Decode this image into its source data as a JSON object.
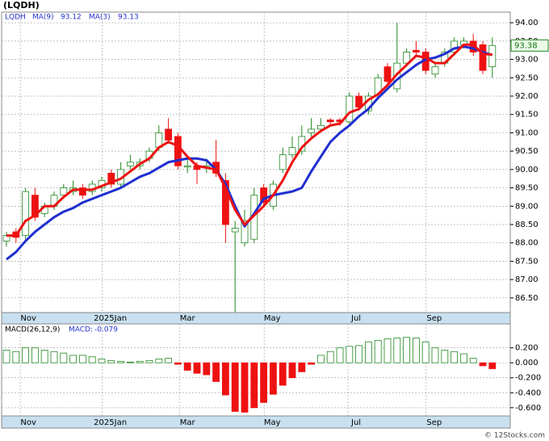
{
  "header": {
    "title": "(LQDH)",
    "footer": "© 12Stocks.com"
  },
  "chart_data": [
    {
      "type": "candlestick",
      "symbol": "LQDH",
      "open": [
        88.05,
        88.3,
        88.2,
        89.3,
        88.8,
        89.0,
        89.3,
        89.4,
        89.5,
        89.4,
        89.5,
        89.9,
        89.6,
        90.1,
        90.1,
        90.3,
        90.6,
        91.1,
        90.9,
        90.1,
        90.1,
        90.05,
        90.2,
        89.7,
        88.3,
        88.0,
        88.1,
        89.5,
        89.0,
        90.0,
        90.4,
        90.5,
        91.0,
        91.1,
        91.35,
        91.35,
        91.3,
        92.0,
        91.6,
        92.0,
        92.8,
        92.2,
        92.9,
        93.25,
        93.2,
        92.6,
        92.9,
        93.2,
        93.4,
        93.5,
        93.4,
        92.8
      ],
      "high": [
        88.3,
        88.4,
        89.5,
        89.5,
        89.1,
        89.4,
        89.6,
        89.7,
        89.6,
        89.7,
        89.8,
        90.0,
        90.2,
        90.4,
        90.3,
        90.6,
        91.2,
        91.4,
        91.0,
        90.3,
        90.2,
        90.3,
        90.8,
        89.9,
        88.6,
        88.9,
        89.5,
        89.6,
        89.7,
        90.6,
        90.9,
        91.2,
        91.4,
        91.4,
        91.4,
        91.4,
        92.1,
        92.1,
        92.1,
        92.6,
        92.9,
        94.0,
        93.3,
        93.5,
        93.3,
        92.9,
        93.3,
        93.6,
        93.6,
        93.7,
        93.5,
        93.6
      ],
      "low": [
        87.9,
        88.0,
        88.1,
        88.6,
        88.7,
        88.9,
        89.2,
        89.3,
        89.2,
        89.3,
        89.4,
        89.5,
        89.5,
        90.0,
        90.0,
        90.2,
        90.5,
        90.7,
        90.0,
        89.9,
        89.6,
        89.9,
        89.8,
        88.0,
        86.1,
        87.9,
        88.0,
        89.0,
        88.9,
        89.9,
        90.3,
        90.4,
        90.9,
        91.0,
        91.2,
        91.2,
        91.2,
        91.6,
        91.5,
        91.9,
        92.3,
        92.1,
        92.8,
        93.1,
        92.6,
        92.5,
        92.8,
        93.1,
        93.3,
        93.1,
        92.6,
        92.5
      ],
      "close": [
        88.2,
        88.15,
        89.4,
        88.7,
        89.0,
        89.3,
        89.5,
        89.5,
        89.3,
        89.6,
        89.7,
        89.6,
        90.0,
        90.2,
        90.2,
        90.5,
        91.0,
        90.8,
        90.1,
        90.1,
        90.0,
        90.1,
        89.9,
        88.5,
        88.4,
        88.6,
        89.3,
        89.1,
        89.6,
        90.4,
        90.6,
        90.9,
        91.1,
        91.2,
        91.3,
        91.3,
        92.0,
        91.7,
        92.0,
        92.5,
        92.4,
        92.9,
        93.2,
        93.2,
        92.7,
        92.8,
        93.2,
        93.5,
        93.5,
        93.2,
        92.7,
        93.38
      ],
      "up_color": "#228822",
      "down_color": "#ee1111",
      "series": [
        {
          "name": "MA(9)",
          "color": "#1f2fd0",
          "values": [
            87.55,
            87.75,
            88.05,
            88.3,
            88.5,
            88.7,
            88.85,
            88.95,
            89.1,
            89.2,
            89.3,
            89.4,
            89.5,
            89.65,
            89.8,
            89.9,
            90.05,
            90.2,
            90.25,
            90.3,
            90.3,
            90.25,
            90.0,
            89.6,
            89.0,
            88.45,
            88.8,
            89.2,
            89.3,
            89.35,
            89.4,
            89.5,
            89.95,
            90.35,
            90.75,
            91.0,
            91.2,
            91.45,
            91.65,
            91.95,
            92.2,
            92.45,
            92.65,
            92.85,
            93.0,
            93.05,
            93.15,
            93.3,
            93.35,
            93.3,
            93.2,
            93.12
          ]
        },
        {
          "name": "MA(3)",
          "color": "#ee1111",
          "values": [
            88.2,
            88.2,
            88.6,
            88.75,
            89.0,
            89.0,
            89.25,
            89.45,
            89.45,
            89.45,
            89.55,
            89.65,
            89.75,
            89.95,
            90.15,
            90.3,
            90.6,
            90.75,
            90.65,
            90.35,
            90.1,
            90.05,
            90.0,
            89.5,
            88.9,
            88.5,
            88.75,
            89.0,
            89.3,
            89.7,
            90.2,
            90.6,
            90.85,
            91.05,
            91.2,
            91.25,
            91.55,
            91.65,
            91.9,
            92.05,
            92.3,
            92.6,
            92.85,
            93.1,
            93.05,
            92.9,
            92.9,
            93.15,
            93.4,
            93.4,
            93.15,
            93.13
          ]
        }
      ],
      "ylim": [
        86.1,
        94.29
      ],
      "yticks": [
        {
          "value": 86.5,
          "label": "86.50"
        },
        {
          "value": 87,
          "label": "87.00"
        },
        {
          "value": 87.5,
          "label": "87.50"
        },
        {
          "value": 88,
          "label": "88.00"
        },
        {
          "value": 88.5,
          "label": "88.50"
        },
        {
          "value": 89,
          "label": "89.00"
        },
        {
          "value": 89.5,
          "label": "89.50"
        },
        {
          "value": 90,
          "label": "90.00"
        },
        {
          "value": 90.5,
          "label": "90.50"
        },
        {
          "value": 91,
          "label": "91.00"
        },
        {
          "value": 91.5,
          "label": "91.50"
        },
        {
          "value": 92,
          "label": "92.00"
        },
        {
          "value": 92.5,
          "label": "92.50"
        },
        {
          "value": 93,
          "label": "93.00"
        },
        {
          "value": 93.5,
          "label": "93.50"
        },
        {
          "value": 94,
          "label": "94.00"
        }
      ],
      "xticks": [
        {
          "value": 2.3,
          "label": "Nov"
        },
        {
          "value": 10.9,
          "label": "2025Jan"
        },
        {
          "value": 19,
          "label": "Mar"
        },
        {
          "value": 27.9,
          "label": "May"
        },
        {
          "value": 36.7,
          "label": "Jul"
        },
        {
          "value": 44.9,
          "label": "Sep"
        }
      ],
      "grid": true
    },
    {
      "type": "macd",
      "name": "MACD(26,12,9)",
      "value_name": "MACD:",
      "values": [
        0.17,
        0.15,
        0.2,
        0.2,
        0.17,
        0.15,
        0.13,
        0.1,
        0.1,
        0.08,
        0.05,
        0.03,
        0.02,
        0.01,
        0.02,
        0.03,
        0.05,
        0.06,
        -0.02,
        -0.1,
        -0.14,
        -0.16,
        -0.25,
        -0.43,
        -0.65,
        -0.66,
        -0.6,
        -0.53,
        -0.42,
        -0.3,
        -0.2,
        -0.12,
        -0.02,
        0.1,
        0.15,
        0.2,
        0.22,
        0.23,
        0.28,
        0.3,
        0.32,
        0.33,
        0.34,
        0.33,
        0.28,
        0.2,
        0.17,
        0.15,
        0.12,
        0.06,
        -0.04,
        -0.079
      ],
      "up_color": "#228822",
      "down_color": "#ee1111",
      "ylim": [
        -0.71,
        0.52
      ],
      "yticks": [
        {
          "value": -0.6,
          "label": "-0.600"
        },
        {
          "value": -0.4,
          "label": "-0.400"
        },
        {
          "value": -0.2,
          "label": "-0.200"
        },
        {
          "value": 0,
          "label": "0.000"
        },
        {
          "value": 0.2,
          "label": "0.200"
        }
      ],
      "xticks": [
        {
          "value": 2.3,
          "label": "Nov"
        },
        {
          "value": 10.9,
          "label": "2025Jan"
        },
        {
          "value": 19,
          "label": "Mar"
        },
        {
          "value": 27.9,
          "label": "May"
        },
        {
          "value": 36.7,
          "label": "Jul"
        },
        {
          "value": 44.9,
          "label": "Sep"
        }
      ],
      "grid": true
    }
  ]
}
